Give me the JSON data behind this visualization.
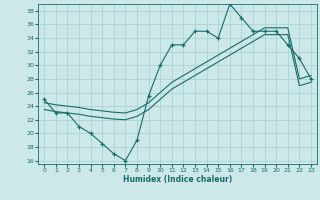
{
  "xlabel": "Humidex (Indice chaleur)",
  "ylabel": "",
  "bg_color": "#cce8e8",
  "grid_color": "#aad4d4",
  "line_color": "#1a6b6b",
  "xlim": [
    -0.5,
    23.5
  ],
  "ylim": [
    15.5,
    39.0
  ],
  "xticks": [
    0,
    1,
    2,
    3,
    4,
    5,
    6,
    7,
    8,
    9,
    10,
    11,
    12,
    13,
    14,
    15,
    16,
    17,
    18,
    19,
    20,
    21,
    22,
    23
  ],
  "yticks": [
    16,
    18,
    20,
    22,
    24,
    26,
    28,
    30,
    32,
    34,
    36,
    38
  ],
  "main_x": [
    0,
    1,
    2,
    3,
    4,
    5,
    6,
    7,
    8,
    9,
    10,
    11,
    12,
    13,
    14,
    15,
    16,
    17,
    18,
    19,
    20,
    21,
    22,
    23
  ],
  "main_y": [
    25,
    23,
    23,
    21,
    20,
    18.5,
    17,
    16,
    19,
    25.5,
    30,
    33,
    33,
    35,
    35,
    34,
    39,
    37,
    35,
    35,
    35,
    33,
    31,
    28
  ],
  "trend1_x": [
    0,
    1,
    2,
    3,
    4,
    5,
    6,
    7,
    8,
    9,
    10,
    11,
    12,
    13,
    14,
    15,
    16,
    17,
    18,
    19,
    20,
    21,
    22,
    23
  ],
  "trend1_y": [
    23.5,
    23.2,
    23.0,
    22.8,
    22.5,
    22.3,
    22.1,
    22.0,
    22.5,
    23.5,
    25.0,
    26.5,
    27.5,
    28.5,
    29.5,
    30.5,
    31.5,
    32.5,
    33.5,
    34.5,
    34.5,
    34.5,
    27.0,
    27.5
  ],
  "trend2_x": [
    0,
    1,
    2,
    3,
    4,
    5,
    6,
    7,
    8,
    9,
    10,
    11,
    12,
    13,
    14,
    15,
    16,
    17,
    18,
    19,
    20,
    21,
    22,
    23
  ],
  "trend2_y": [
    24.5,
    24.2,
    24.0,
    23.8,
    23.5,
    23.3,
    23.1,
    23.0,
    23.5,
    24.5,
    26.0,
    27.5,
    28.5,
    29.5,
    30.5,
    31.5,
    32.5,
    33.5,
    34.5,
    35.5,
    35.5,
    35.5,
    28.0,
    28.5
  ]
}
